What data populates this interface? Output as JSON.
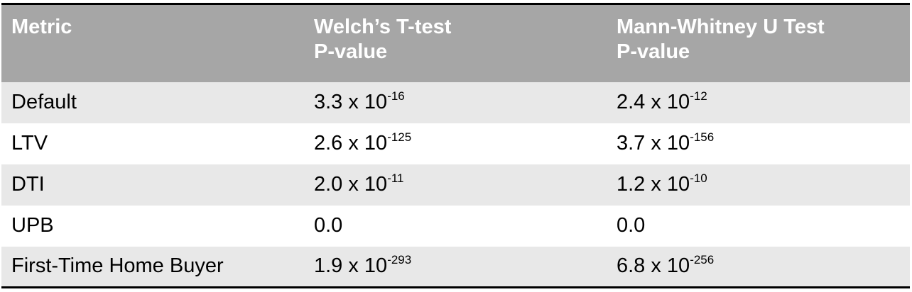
{
  "colors": {
    "header_bg": "#a6a6a6",
    "header_text": "#ffffff",
    "row_shade": "#e8e8e8",
    "row_plain": "#ffffff",
    "rule": "#000000"
  },
  "table": {
    "headers": [
      {
        "line1": "Metric",
        "line2": ""
      },
      {
        "line1": "Welch’s T-test",
        "line2": "P-value"
      },
      {
        "line1": "Mann-Whitney U Test",
        "line2": "P-value"
      }
    ],
    "rows": [
      {
        "metric": "Default",
        "welch": {
          "base": "3.3 x 10",
          "exp": "-16"
        },
        "mann": {
          "base": "2.4 x 10",
          "exp": "-12"
        }
      },
      {
        "metric": "LTV",
        "welch": {
          "base": "2.6 x 10",
          "exp": "-125"
        },
        "mann": {
          "base": "3.7 x 10",
          "exp": "-156"
        }
      },
      {
        "metric": "DTI",
        "welch": {
          "base": "2.0 x 10",
          "exp": "-11"
        },
        "mann": {
          "base": "1.2 x 10",
          "exp": "-10"
        }
      },
      {
        "metric": "UPB",
        "welch": {
          "base": "0.0",
          "exp": ""
        },
        "mann": {
          "base": "0.0",
          "exp": ""
        }
      },
      {
        "metric": "First-Time Home Buyer",
        "welch": {
          "base": "1.9 x 10",
          "exp": "-293"
        },
        "mann": {
          "base": "6.8 x 10",
          "exp": "-256"
        }
      }
    ]
  }
}
